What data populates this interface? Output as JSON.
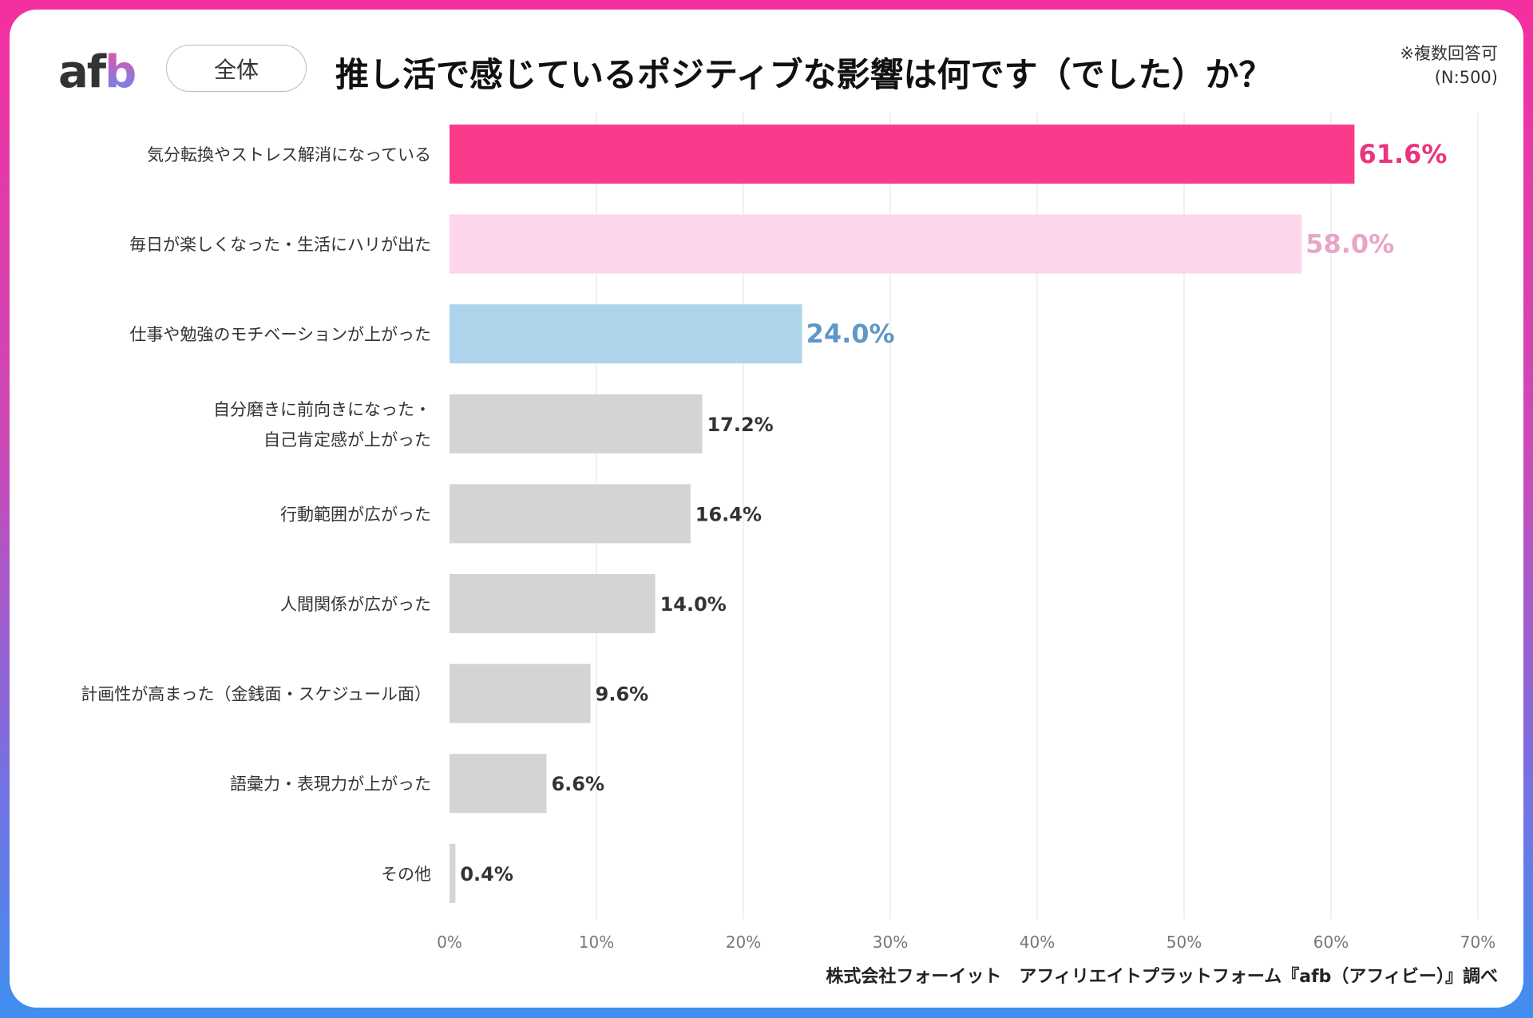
{
  "header": {
    "logo": "afb",
    "segment": "全体",
    "title": "推し活で感じているポジティブな影響は何です（でした）か？",
    "note_line1": "※複数回答可",
    "note_line2": "(N:500)"
  },
  "footer": "株式会社フォーイット　アフィリエイトプラットフォーム『afb（アフィビー）』調べ",
  "chart_data": {
    "type": "bar",
    "orientation": "horizontal",
    "categories": [
      [
        "気分転換やストレス解消になっている"
      ],
      [
        "毎日が楽しくなった・生活にハリが出た"
      ],
      [
        "仕事や勉強のモチベーションが上がった"
      ],
      [
        "自分磨きに前向きになった・",
        "自己肯定感が上がった"
      ],
      [
        "行動範囲が広がった"
      ],
      [
        "人間関係が広がった"
      ],
      [
        "計画性が高まった（金銭面・スケジュール面）"
      ],
      [
        "語彙力・表現力が上がった"
      ],
      [
        "その他"
      ]
    ],
    "values": [
      61.6,
      58.0,
      24.0,
      17.2,
      16.4,
      14.0,
      9.6,
      6.6,
      0.4
    ],
    "value_labels": [
      "61.6%",
      "58.0%",
      "24.0%",
      "17.2%",
      "16.4%",
      "14.0%",
      "9.6%",
      "6.6%",
      "0.4%"
    ],
    "bar_colors": [
      "#fc3a8c",
      "#fdd6ec",
      "#aed4ec",
      "#d6d3d3",
      "#d6d3d3",
      "#d6d3d3",
      "#d6d3d3",
      "#d6d3d3",
      "#d6d3d3"
    ],
    "label_colors": [
      "#e8357f",
      "#e9a4c8",
      "#5f97c9",
      "#333333",
      "#333333",
      "#333333",
      "#333333",
      "#333333",
      "#333333"
    ],
    "xlim": [
      0,
      70
    ],
    "xticks": [
      "0%",
      "10%",
      "20%",
      "30%",
      "40%",
      "50%",
      "60%",
      "70%"
    ],
    "grid": true
  }
}
